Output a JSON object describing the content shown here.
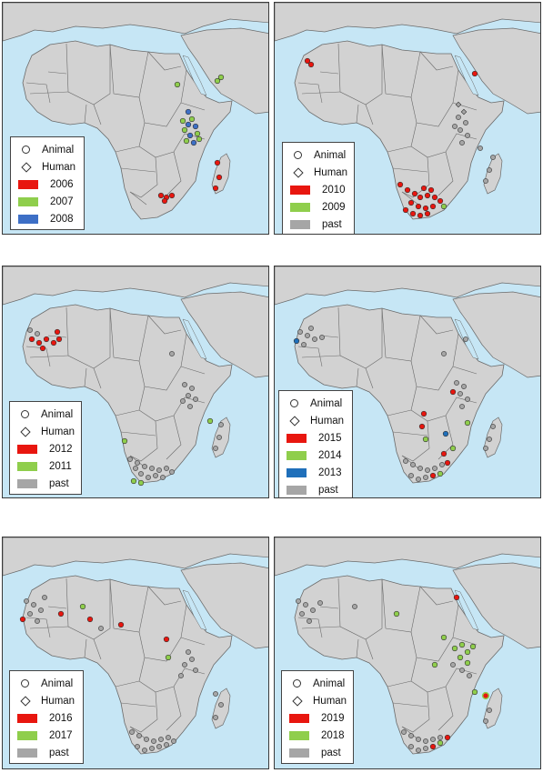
{
  "legend": {
    "animal_label": "Animal",
    "human_label": "Human"
  },
  "colors": {
    "sea": "#c6e6f5",
    "land": "#d2d2d2",
    "border": "#6a6a6a",
    "red": "#e8160f",
    "green": "#8fce4c",
    "blue": "#3d6fc6",
    "past": "#a6a6a6",
    "2013": "#1f6fba"
  },
  "panels": [
    {
      "id": "p1",
      "entries": [
        {
          "label": "2006",
          "color": "red"
        },
        {
          "label": "2007",
          "color": "green"
        },
        {
          "label": "2008",
          "color": "blue"
        }
      ]
    },
    {
      "id": "p2",
      "entries": [
        {
          "label": "2010",
          "color": "red"
        },
        {
          "label": "2009",
          "color": "green"
        },
        {
          "label": "past",
          "color": "past"
        }
      ]
    },
    {
      "id": "p3",
      "entries": [
        {
          "label": "2012",
          "color": "red"
        },
        {
          "label": "2011",
          "color": "green"
        },
        {
          "label": "past",
          "color": "past"
        }
      ]
    },
    {
      "id": "p4",
      "entries": [
        {
          "label": "2015",
          "color": "red"
        },
        {
          "label": "2014",
          "color": "green"
        },
        {
          "label": "2013",
          "color": "2013"
        },
        {
          "label": "past",
          "color": "past"
        }
      ]
    },
    {
      "id": "p5",
      "entries": [
        {
          "label": "2016",
          "color": "red"
        },
        {
          "label": "2017",
          "color": "green"
        },
        {
          "label": "past",
          "color": "past"
        }
      ]
    },
    {
      "id": "p6",
      "entries": [
        {
          "label": "2019",
          "color": "red"
        },
        {
          "label": "2018",
          "color": "green"
        },
        {
          "label": "past",
          "color": "past"
        }
      ]
    }
  ]
}
